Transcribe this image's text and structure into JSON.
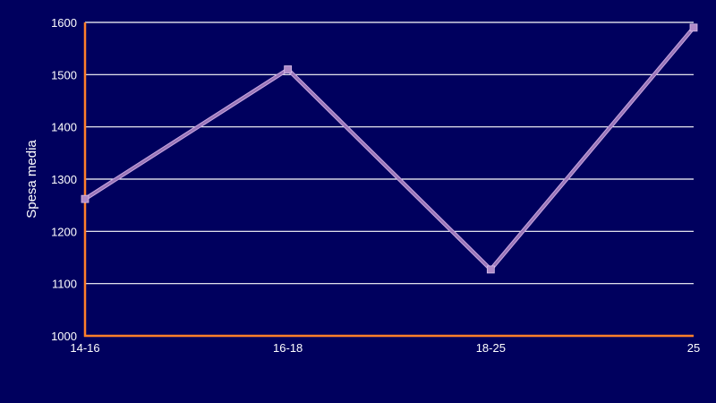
{
  "chart_data": {
    "type": "line",
    "categories": [
      "14-16",
      "16-18",
      "18-25",
      "25"
    ],
    "series": [
      {
        "values": [
          1262,
          1510,
          1127,
          1590
        ]
      }
    ],
    "title": "",
    "xlabel": "",
    "ylabel": "Spesa media",
    "ylim": [
      1000,
      1600
    ],
    "yticks": [
      1000,
      1100,
      1200,
      1300,
      1400,
      1500,
      1600
    ],
    "grid": "horizontal",
    "legend": "none",
    "colors": {
      "background": "#00005e",
      "axis": "#ff7f2a",
      "grid": "#ffffff",
      "line": "#9a75b8",
      "marker": "#b08ac8",
      "text": "#ffffff"
    }
  }
}
